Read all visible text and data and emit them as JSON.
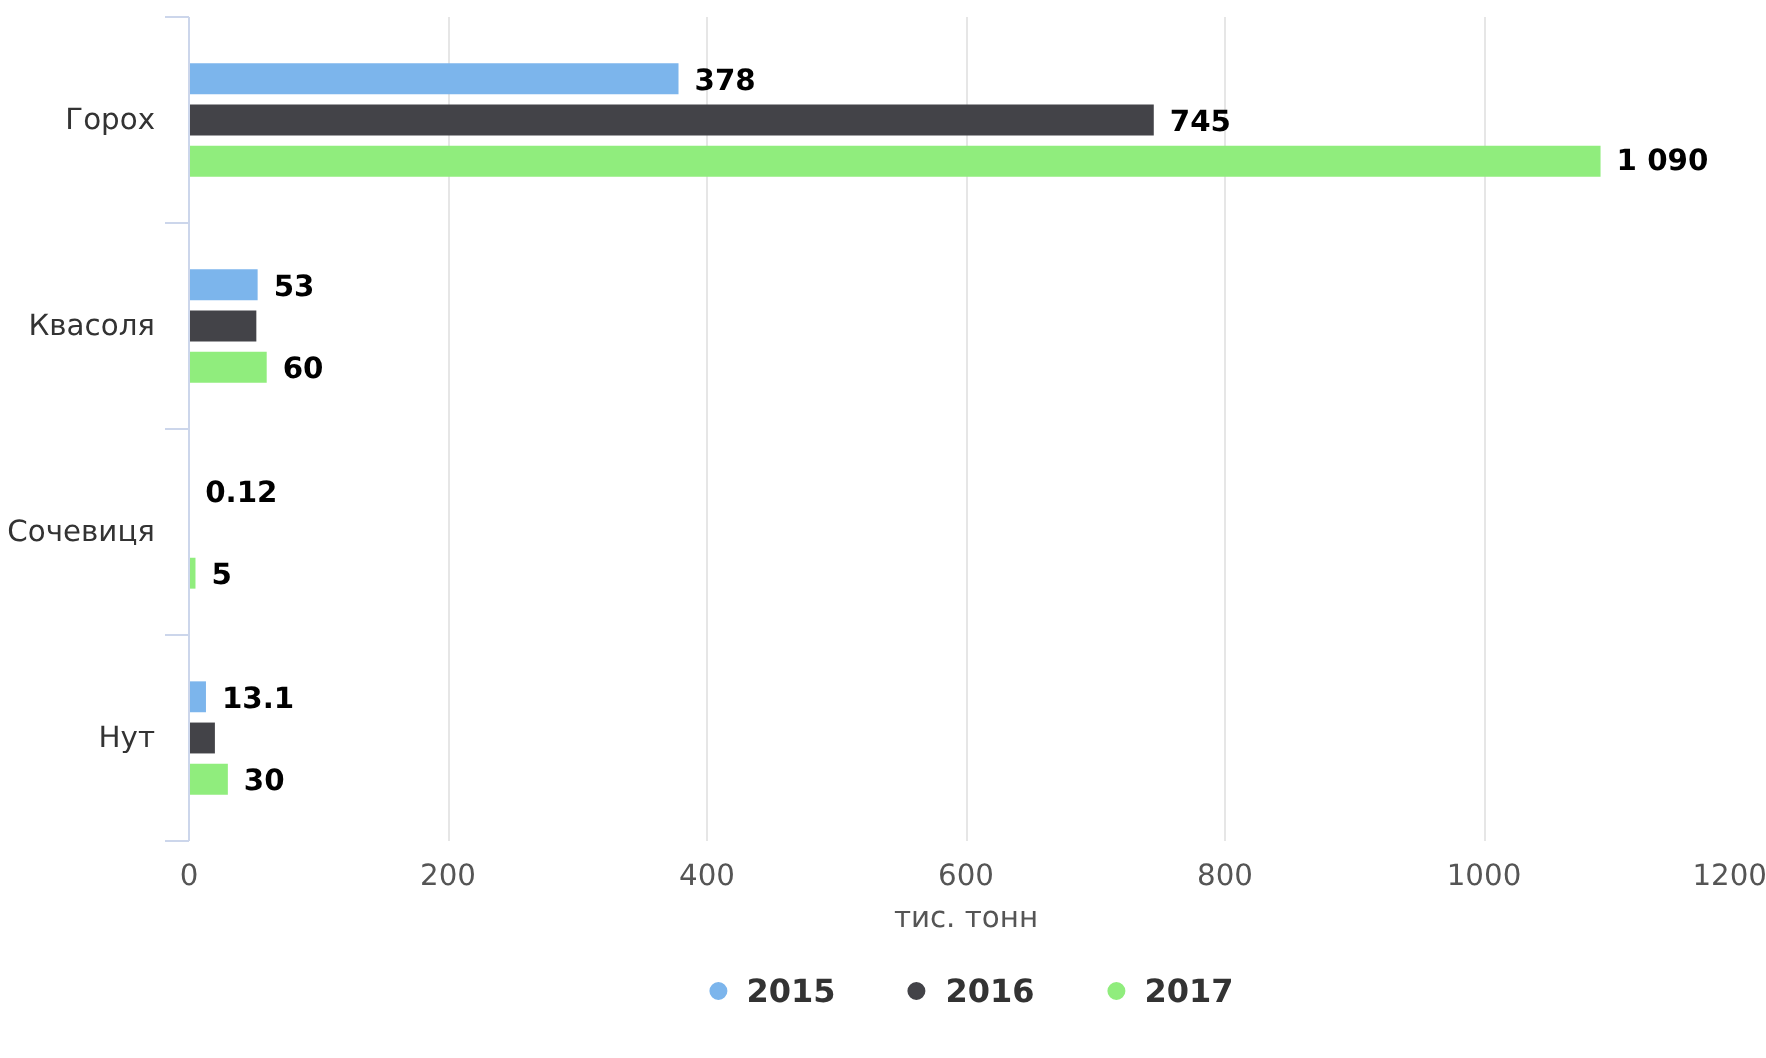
{
  "chart_data": {
    "type": "bar",
    "orientation": "horizontal",
    "xlabel": "тис. тонн",
    "categories": [
      "Горох",
      "Квасоля",
      "Сочевиця",
      "Нут"
    ],
    "series": [
      {
        "name": "2015",
        "color": "#7cb5ec",
        "values": [
          378,
          53,
          0.12,
          13.1
        ],
        "value_labels": [
          "378",
          "53",
          "0.12",
          "13.1"
        ]
      },
      {
        "name": "2016",
        "color": "#434348",
        "values": [
          745,
          52,
          null,
          20
        ],
        "value_labels": [
          "745",
          null,
          null,
          null
        ]
      },
      {
        "name": "2017",
        "color": "#90ed7d",
        "values": [
          1090,
          60,
          5,
          30
        ],
        "value_labels": [
          "1 090",
          "60",
          "5",
          "30"
        ]
      }
    ],
    "xlim": [
      0,
      1200
    ],
    "xticks": [
      0,
      200,
      400,
      600,
      800,
      1000,
      1200
    ],
    "grid": "x",
    "legend": "bottom"
  }
}
